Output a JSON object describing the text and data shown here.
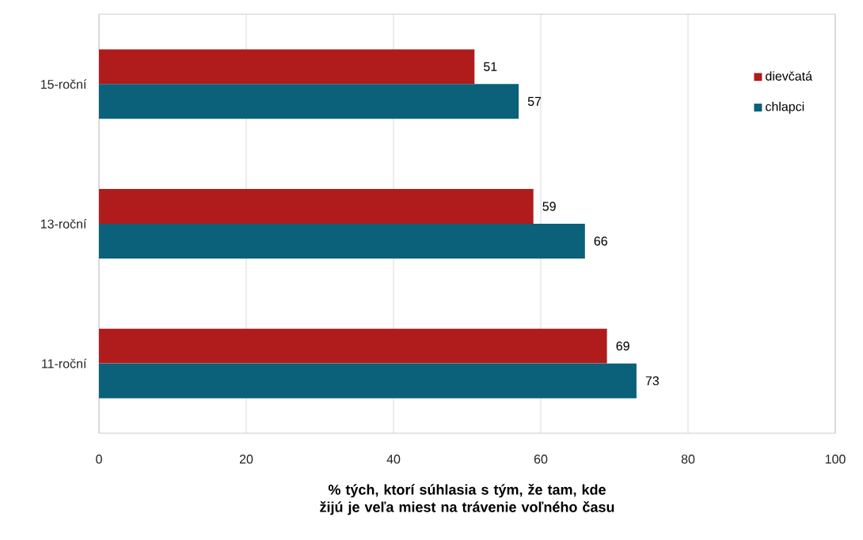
{
  "chart_data": {
    "type": "bar",
    "orientation": "horizontal",
    "xlabel": "% tých, ktorí súhlasia s tým, že tam, kde žijú je veľa miest na trávenie voľného času",
    "categories": [
      "15-roční",
      "13-roční",
      "11-roční"
    ],
    "series": [
      {
        "name": "dievčatá",
        "color": "#b01c1c",
        "values": [
          51,
          59,
          69
        ]
      },
      {
        "name": "chlapci",
        "color": "#0b607a",
        "values": [
          57,
          66,
          73
        ]
      }
    ],
    "xlim": [
      0,
      100
    ],
    "xticks": [
      0,
      20,
      40,
      60,
      80,
      100
    ],
    "grid": "x",
    "legend": "top right",
    "data_labels": true
  }
}
